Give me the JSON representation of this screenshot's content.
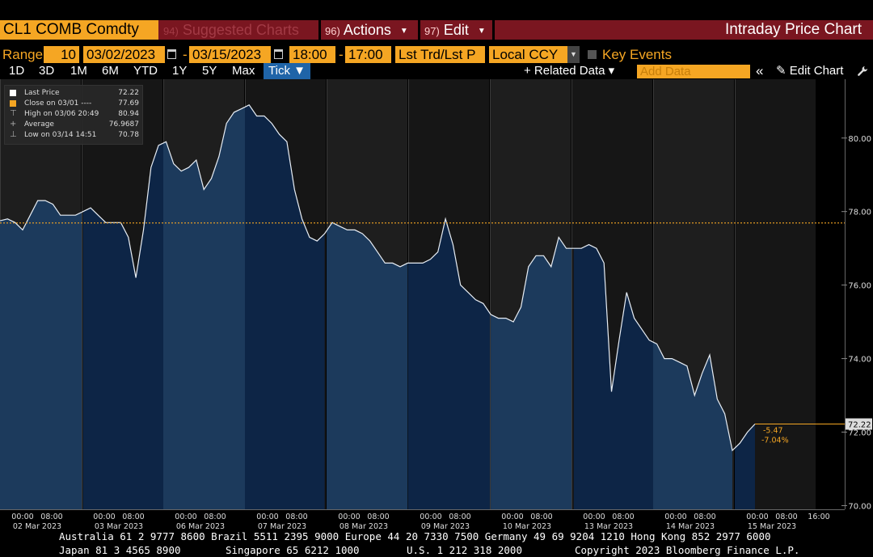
{
  "topbar": {
    "ticker": "CL1 COMB Comdty",
    "suggested_num": "94)",
    "suggested_label": "Suggested Charts",
    "actions_num": "96)",
    "actions_label": "Actions",
    "edit_num": "97)",
    "edit_label": "Edit",
    "title": "Intraday Price Chart"
  },
  "range_row": {
    "range_label": "Range",
    "interval": "10",
    "start_date": "03/02/2023",
    "dash1": "-",
    "end_date": "03/15/2023",
    "start_time": "18:00",
    "dash2": "-",
    "end_time": "17:00",
    "price_type": "Lst Trd/Lst P",
    "currency": "Local CCY",
    "key_events_label": "Key Events",
    "key_events_checked": false
  },
  "period_row": {
    "buttons": [
      "1D",
      "3D",
      "1M",
      "6M",
      "YTD",
      "1Y",
      "5Y",
      "Max"
    ],
    "tick_label": "Tick ▼",
    "related_data_label": "+ Related Data ▾",
    "add_data_placeholder": "Add Data",
    "collapse_label": "«",
    "edit_chart_label": "✎ Edit Chart"
  },
  "legend": {
    "rows": [
      {
        "label": "Last Price",
        "value": "72.22"
      },
      {
        "label": "Close on 03/01 ----",
        "value": "77.69"
      },
      {
        "label": "High on 03/06 20:49",
        "value": "80.94"
      },
      {
        "label": "Average",
        "value": "76.9687"
      },
      {
        "label": "Low on 03/14 14:51",
        "value": "70.78"
      }
    ]
  },
  "chart_data": {
    "type": "area",
    "ylim": [
      69.9,
      81.6
    ],
    "y_ticks": [
      "70.00",
      "72.00",
      "74.00",
      "76.00",
      "78.00",
      "80.00"
    ],
    "last_price_label": "72.22",
    "change": "-5.47",
    "change_pct": "-7.04%",
    "reference_close": 77.69,
    "days": [
      {
        "date": "02 Mar 2023",
        "start": "00:00",
        "mid": "08:00"
      },
      {
        "date": "03 Mar 2023",
        "start": "00:00",
        "mid": "08:00"
      },
      {
        "date": "06 Mar 2023",
        "start": "00:00",
        "mid": "08:00"
      },
      {
        "date": "07 Mar 2023",
        "start": "00:00",
        "mid": "08:00"
      },
      {
        "date": "08 Mar 2023",
        "start": "00:00",
        "mid": "08:00"
      },
      {
        "date": "09 Mar 2023",
        "start": "00:00",
        "mid": "08:00"
      },
      {
        "date": "10 Mar 2023",
        "start": "00:00",
        "mid": "08:00"
      },
      {
        "date": "13 Mar 2023",
        "start": "00:00",
        "mid": "08:00"
      },
      {
        "date": "14 Mar 2023",
        "start": "00:00",
        "mid": "08:00"
      },
      {
        "date": "15 Mar 2023",
        "start": "00:00",
        "mid": "08:00",
        "extra": [
          "16:00"
        ]
      }
    ],
    "series": [
      {
        "name": "Last Price",
        "values": [
          77.75,
          77.8,
          77.7,
          77.5,
          77.9,
          78.3,
          78.3,
          78.2,
          77.9,
          77.9,
          77.9,
          78.0,
          78.1,
          77.9,
          77.7,
          77.7,
          77.7,
          77.3,
          76.2,
          77.5,
          79.2,
          79.8,
          79.9,
          79.3,
          79.1,
          79.2,
          79.4,
          78.6,
          78.9,
          79.5,
          80.4,
          80.7,
          80.8,
          80.9,
          80.6,
          80.6,
          80.4,
          80.1,
          79.9,
          78.6,
          77.8,
          77.3,
          77.2,
          77.4,
          77.7,
          77.6,
          77.5,
          77.5,
          77.4,
          77.2,
          76.9,
          76.6,
          76.6,
          76.5,
          76.6,
          76.6,
          76.6,
          76.7,
          76.9,
          77.8,
          77.1,
          76.0,
          75.8,
          75.6,
          75.5,
          75.2,
          75.1,
          75.1,
          75.0,
          75.4,
          76.5,
          76.8,
          76.8,
          76.5,
          77.3,
          77.0,
          77.0,
          77.0,
          77.1,
          77.0,
          76.6,
          73.1,
          74.5,
          75.8,
          75.1,
          74.8,
          74.5,
          74.4,
          74.0,
          74.0,
          73.9,
          73.8,
          73.0,
          73.6,
          74.1,
          72.9,
          72.5,
          71.5,
          71.7,
          72.0,
          72.22
        ]
      }
    ]
  },
  "footer": {
    "line1": "Australia 61 2 9777 8600 Brazil 5511 2395 9000 Europe 44 20 7330 7500 Germany 49 69 9204 1210 Hong Kong 852 2977 6000",
    "line2_japan": "Japan 81 3 4565 8900",
    "line2_singapore": "Singapore 65 6212 1000",
    "line2_us": "U.S. 1 212 318 2000",
    "line2_copyright": "Copyright 2023 Bloomberg Finance L.P."
  },
  "colors": {
    "accent_orange": "#f5a623",
    "header_red": "#7a1620",
    "area_fill_light": "#1c3a5c",
    "area_fill_dark": "#0d2546",
    "tick_blue": "#1f64a8"
  }
}
